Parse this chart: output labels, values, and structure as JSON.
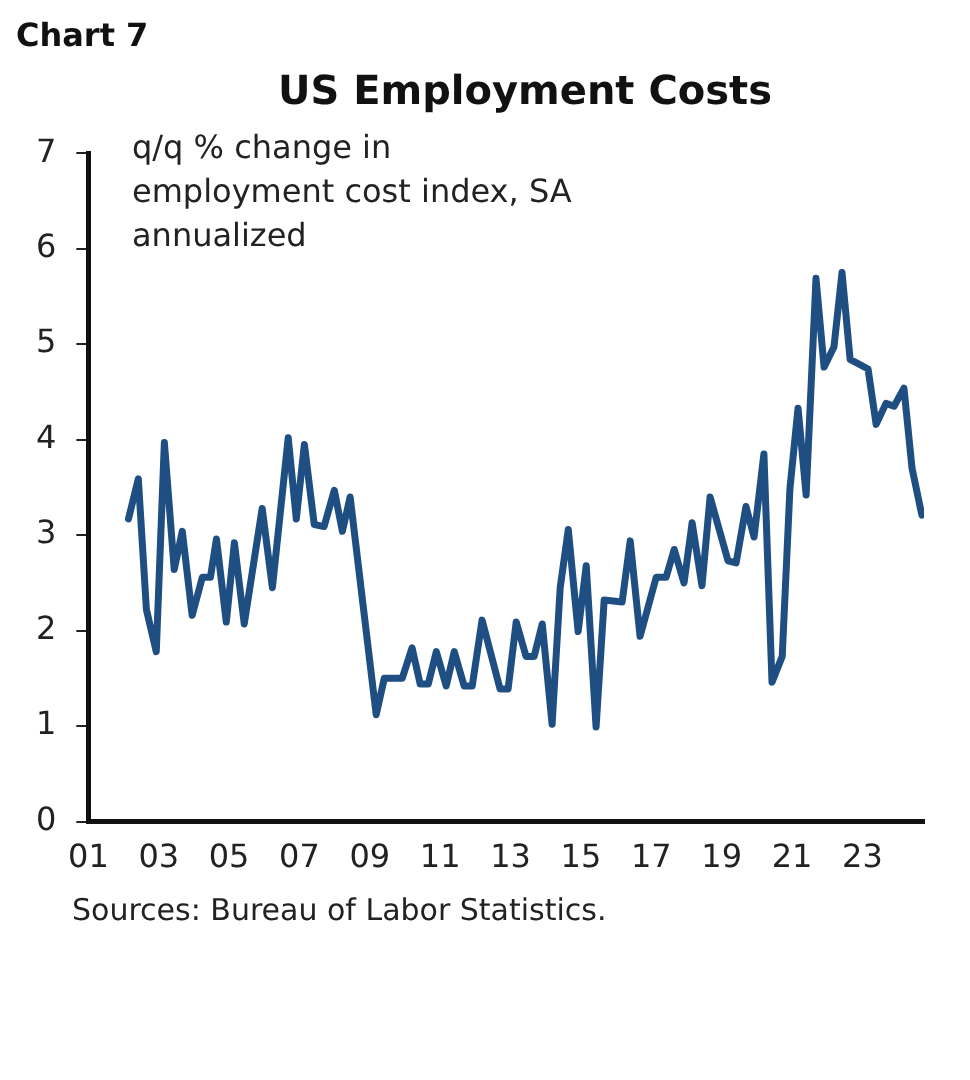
{
  "chart_data": {
    "type": "line",
    "title": "US Employment Costs",
    "annotations": [
      "Chart 7",
      "q/q % change in employment cost index, SA annualized",
      "Sources: Bureau of Labor Statistics."
    ],
    "x": [
      2002.14,
      2002.42,
      2002.65,
      2002.93,
      2003.16,
      2003.44,
      2003.67,
      2003.95,
      2004.24,
      2004.47,
      2004.64,
      2004.92,
      2005.15,
      2005.43,
      2005.94,
      2006.23,
      2006.68,
      2006.91,
      2007.14,
      2007.42,
      2007.7,
      2007.99,
      2008.22,
      2008.44,
      2009.18,
      2009.41,
      2009.92,
      2010.2,
      2010.43,
      2010.66,
      2010.89,
      2011.17,
      2011.4,
      2011.68,
      2011.91,
      2012.19,
      2012.7,
      2012.93,
      2013.16,
      2013.44,
      2013.67,
      2013.9,
      2014.18,
      2014.41,
      2014.64,
      2014.92,
      2015.15,
      2015.43,
      2015.66,
      2016.17,
      2016.4,
      2016.68,
      2017.14,
      2017.42,
      2017.65,
      2017.93,
      2018.16,
      2018.44,
      2018.67,
      2019.18,
      2019.41,
      2019.69,
      2019.92,
      2020.2,
      2020.43,
      2020.72,
      2020.94,
      2021.17,
      2021.4,
      2021.68,
      2021.91,
      2022.19,
      2022.42,
      2022.65,
      2023.16,
      2023.39,
      2023.67,
      2023.9,
      2024.18,
      2024.41,
      2024.69
    ],
    "series": [
      {
        "color": "#1f4e82",
        "values": [
          3.17,
          3.59,
          2.22,
          1.78,
          3.97,
          2.64,
          3.04,
          2.16,
          2.56,
          2.56,
          2.96,
          2.09,
          2.92,
          2.07,
          3.28,
          2.45,
          4.02,
          3.17,
          3.95,
          3.11,
          3.09,
          3.47,
          3.04,
          3.4,
          1.12,
          1.5,
          1.5,
          1.82,
          1.44,
          1.44,
          1.78,
          1.42,
          1.78,
          1.42,
          1.42,
          2.11,
          1.39,
          1.39,
          2.09,
          1.73,
          1.73,
          2.07,
          1.02,
          2.45,
          3.06,
          1.99,
          2.68,
          0.99,
          2.32,
          2.3,
          2.94,
          1.94,
          2.56,
          2.56,
          2.85,
          2.5,
          3.13,
          2.47,
          3.4,
          2.73,
          2.71,
          3.3,
          2.98,
          3.85,
          1.46,
          1.73,
          3.49,
          4.33,
          3.42,
          5.69,
          4.76,
          4.97,
          5.75,
          4.84,
          4.74,
          4.16,
          4.38,
          4.35,
          4.54,
          3.7,
          3.21
        ]
      }
    ],
    "xlim": [
      2001,
      2024.75
    ],
    "xticks": [
      {
        "value": 2001,
        "label": "01"
      },
      {
        "value": 2003,
        "label": "03"
      },
      {
        "value": 2005,
        "label": "05"
      },
      {
        "value": 2007,
        "label": "07"
      },
      {
        "value": 2009,
        "label": "09"
      },
      {
        "value": 2011,
        "label": "11"
      },
      {
        "value": 2013,
        "label": "13"
      },
      {
        "value": 2015,
        "label": "15"
      },
      {
        "value": 2017,
        "label": "17"
      },
      {
        "value": 2019,
        "label": "19"
      },
      {
        "value": 2021,
        "label": "21"
      },
      {
        "value": 2023,
        "label": "23"
      }
    ],
    "ylim": [
      0,
      7
    ],
    "yticks": [
      0,
      1,
      2,
      3,
      4,
      5,
      6,
      7
    ],
    "grid": false,
    "legend": false,
    "marker": "none",
    "line_style": "solid"
  }
}
